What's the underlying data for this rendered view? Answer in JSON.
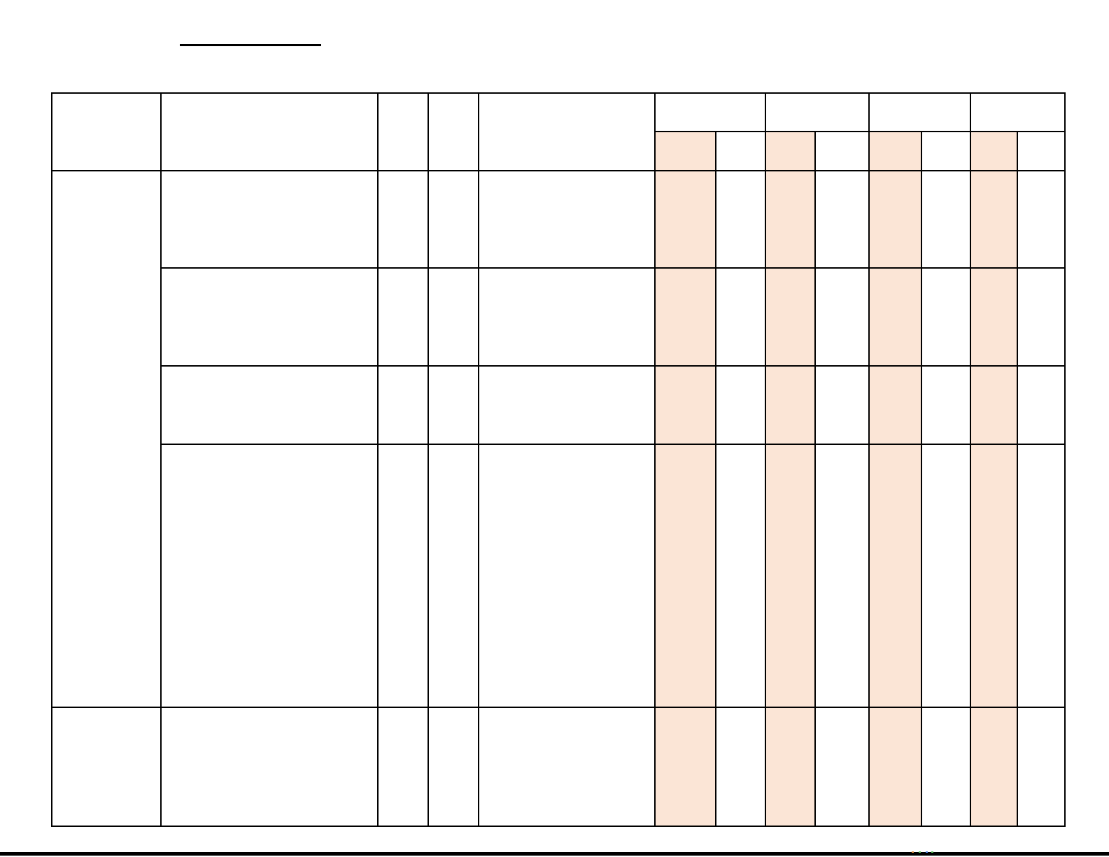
{
  "page": {
    "background_color": "#FFFFFF",
    "rule_color": "#000000",
    "all_cells_empty": true
  },
  "table": {
    "border_color": "#000000",
    "highlight_color": "#FBE5D6",
    "column_count": 13,
    "header_pair_count": 4,
    "body_row_count": 5,
    "highlighted_subcolumn_positions": [
      6,
      8,
      10,
      12
    ],
    "cell_text": ""
  },
  "bottom_edge_specks": {
    "colors": [
      "#d9893b",
      "#58b658",
      "#4a7fd9",
      "#58b658"
    ]
  }
}
